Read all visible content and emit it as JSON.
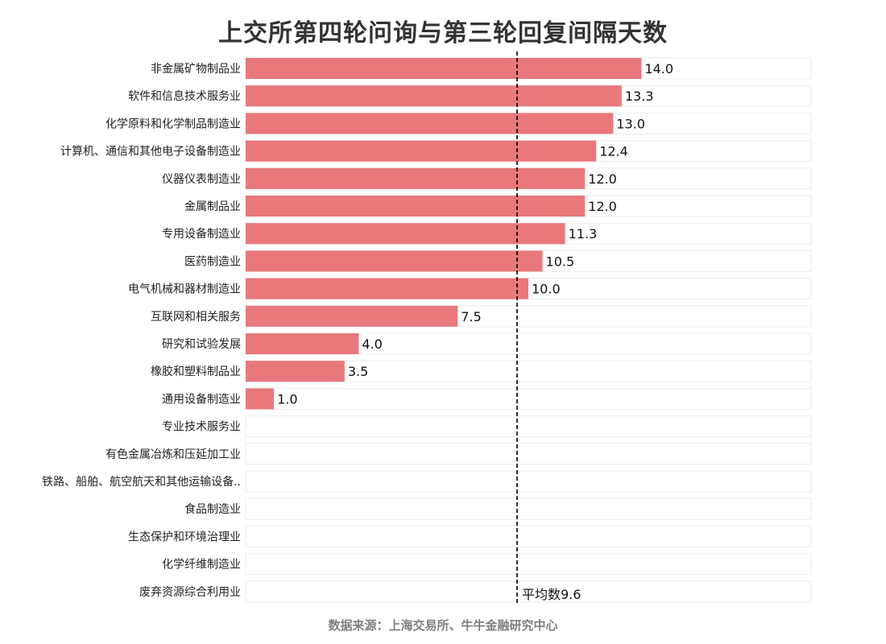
{
  "chart_data": {
    "type": "bar",
    "orientation": "horizontal",
    "title": "上交所第四轮问询与第三轮回复间隔天数",
    "categories": [
      "非金属矿物制品业",
      "软件和信息技术服务业",
      "化学原料和化学制品制造业",
      "计算机、通信和其他电子设备制造业",
      "仪器仪表制造业",
      "金属制品业",
      "专用设备制造业",
      "医药制造业",
      "电气机械和器材制造业",
      "互联网和相关服务",
      "研究和试验发展",
      "橡胶和塑料制品业",
      "通用设备制造业",
      "专业技术服务业",
      "有色金属冶炼和压延加工业",
      "铁路、船舶、航空航天和其他运输设备..",
      "食品制造业",
      "生态保护和环境治理业",
      "化学纤维制造业",
      "废弃资源综合利用业"
    ],
    "values": [
      14.0,
      13.3,
      13.0,
      12.4,
      12.0,
      12.0,
      11.3,
      10.5,
      10.0,
      7.5,
      4.0,
      3.5,
      1.0,
      null,
      null,
      null,
      null,
      null,
      null,
      null
    ],
    "value_labels": [
      "14.0",
      "13.3",
      "13.0",
      "12.4",
      "12.0",
      "12.0",
      "11.3",
      "10.5",
      "10.0",
      "7.5",
      "4.0",
      "3.5",
      "1.0",
      "",
      "",
      "",
      "",
      "",
      "",
      ""
    ],
    "xlim": [
      0,
      20
    ],
    "reference_line": {
      "value": 9.6,
      "label": "平均数9.6",
      "style": "dashed",
      "color": "#000000"
    },
    "bar_color": "#e8787c",
    "track_color": "#ffffff",
    "track_border_color": "#ebebeb",
    "grid": false,
    "legend": "none"
  },
  "source_note": "数据来源：上海交易所、牛牛金融研究中心"
}
